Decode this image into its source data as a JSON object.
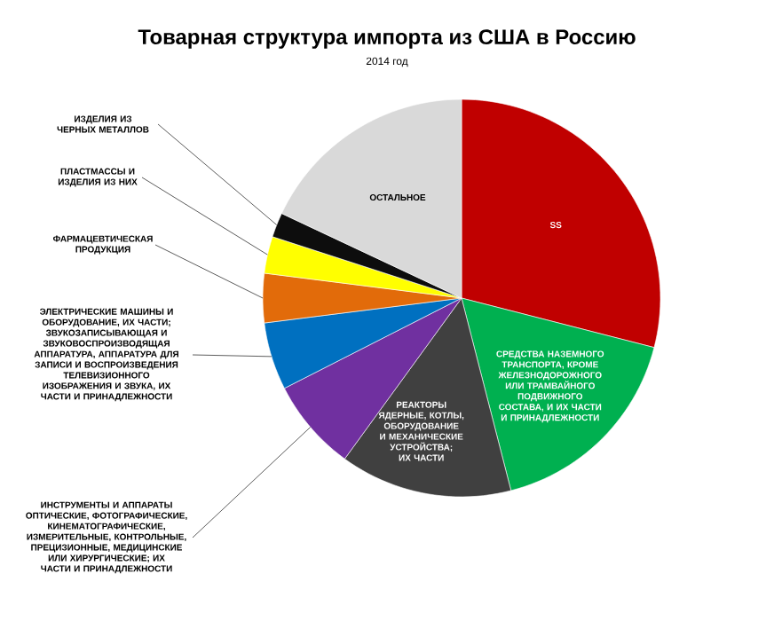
{
  "chart_data": {
    "type": "pie",
    "title": "Товарная структура импорта из США в Россию",
    "subtitle": "2014 год",
    "categories": [
      "SS",
      "СРЕДСТВА НАЗЕМНОГО ТРАНСПОРТА, КРОМЕ ЖЕЛЕЗНОДОРОЖНОГО ИЛИ ТРАМВАЙНОГО ПОДВИЖНОГО СОСТАВА, И ИХ ЧАСТИ И ПРИНАДЛЕЖНОСТИ",
      "РЕАКТОРЫ ЯДЕРНЫЕ, КОТЛЫ, ОБОРУДОВАНИЕ И МЕХАНИЧЕСКИЕ УСТРОЙСТВА; ИХ ЧАСТИ",
      "ИНСТРУМЕНТЫ И АППАРАТЫ ОПТИЧЕСКИЕ, ФОТОГРАФИЧЕСКИЕ, КИНЕМАТОГРАФИЧЕСКИЕ, ИЗМЕРИТЕЛЬНЫЕ, КОНТРОЛЬНЫЕ, ПРЕЦИЗИОННЫЕ, МЕДИЦИНСКИЕ ИЛИ ХИРУРГИЧЕСКИЕ; ИХ ЧАСТИ И ПРИНАДЛЕЖНОСТИ",
      "ЭЛЕКТРИЧЕСКИЕ МАШИНЫ И ОБОРУДОВАНИЕ, ИХ ЧАСТИ; ЗВУКОЗАПИСЫВАЮЩАЯ И ЗВУКОВОСПРОИЗВОДЯЩАЯ АППАРАТУРА, АППАРАТУРА ДЛЯ ЗАПИСИ И ВОСПРОИЗВЕДЕНИЯ ТЕЛЕВИЗИОННОГО ИЗОБРАЖЕНИЯ И ЗВУКА, ИХ ЧАСТИ И ПРИНАДЛЕЖНОСТИ",
      "ФАРМАЦЕВТИЧЕСКАЯ ПРОДУКЦИЯ",
      "ПЛАСТМАССЫ И ИЗДЕЛИЯ ИЗ НИХ",
      "ИЗДЕЛИЯ ИЗ ЧЕРНЫХ МЕТАЛЛОВ",
      "ОСТАЛЬНОЕ"
    ],
    "values": [
      29,
      17,
      14,
      7.5,
      5.5,
      4,
      3,
      2,
      18
    ],
    "colors": [
      "#c00000",
      "#00b050",
      "#404040",
      "#7030a0",
      "#0070c0",
      "#e26b0a",
      "#ffff00",
      "#0d0d0d",
      "#d9d9d9"
    ]
  }
}
